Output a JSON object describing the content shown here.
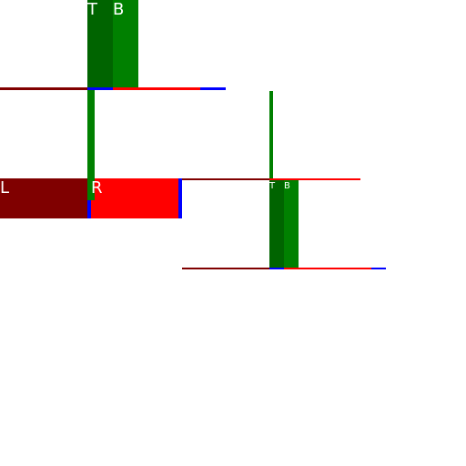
{
  "labels": {
    "top_group_t": "T",
    "top_group_b": "B",
    "left_group_l": "L",
    "left_group_r": "R",
    "right_group_t": "T",
    "right_group_b": "B"
  },
  "colors": {
    "background": "#ffffff",
    "dark_green": "#006400",
    "green": "#008000",
    "dark_red": "#800000",
    "red": "#ff0000",
    "blue": "#0000ff",
    "label_text": "#ffffff"
  }
}
